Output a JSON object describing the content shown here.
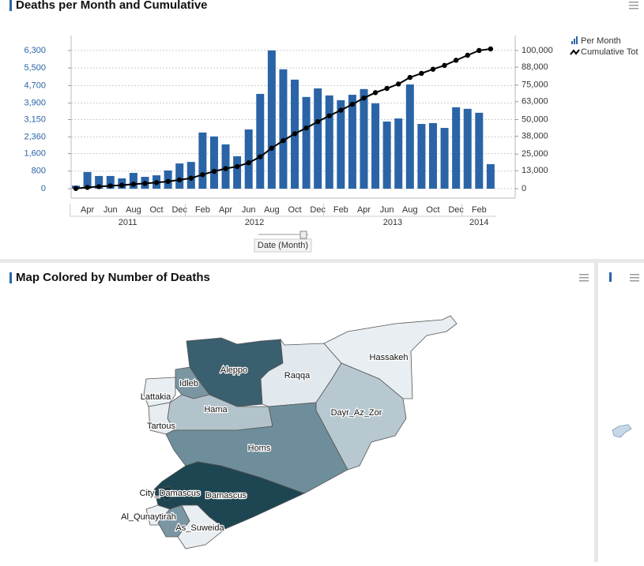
{
  "chart_data": {
    "type": "bar_line",
    "title": "Deaths per Month and Cumulative",
    "x_title": "Date (Month)",
    "categories": [
      null,
      "Apr",
      null,
      "Jun",
      null,
      "Aug",
      null,
      "Oct",
      null,
      "Dec",
      null,
      "Feb",
      null,
      "Apr",
      null,
      "Jun",
      null,
      "Aug",
      null,
      "Oct",
      null,
      "Dec",
      null,
      "Feb",
      null,
      "Apr",
      null,
      "Jun",
      null,
      "Aug",
      null,
      "Oct",
      null,
      "Dec",
      null,
      "Feb",
      null
    ],
    "years": [
      "2011",
      "2012",
      "2013",
      "2014"
    ],
    "series": [
      {
        "name": "Per Month",
        "color": "#2a64a6",
        "kind": "bar",
        "values": [
          140,
          760,
          580,
          580,
          470,
          720,
          540,
          610,
          830,
          1150,
          1220,
          2560,
          2380,
          2020,
          1480,
          2700,
          4320,
          6300,
          5440,
          4970,
          4180,
          4570,
          4250,
          4030,
          4280,
          4540,
          3890,
          3060,
          3200,
          4750,
          2950,
          2990,
          2770,
          3710,
          3640,
          3460,
          1120
        ]
      },
      {
        "name": "Cumulative Tot",
        "color": "#000000",
        "kind": "line",
        "axis": "y2",
        "values": [
          140,
          900,
          1480,
          2060,
          2530,
          3250,
          3790,
          4400,
          5230,
          6380,
          7600,
          10160,
          12540,
          14560,
          16040,
          18740,
          23060,
          29360,
          34800,
          39770,
          43950,
          48520,
          52770,
          56800,
          61080,
          65620,
          69510,
          72570,
          75770,
          80520,
          83470,
          86460,
          89230,
          92940,
          96580,
          100040,
          101160
        ]
      }
    ],
    "ylim": [
      -430,
      6980
    ],
    "yticks": [
      0,
      800,
      {
        "value": 1600,
        "label": "1,600"
      },
      {
        "value": 2360,
        "label": "2,360"
      },
      {
        "value": 3150,
        "label": "3,150"
      },
      {
        "value": 3900,
        "label": "3,900"
      },
      {
        "value": 4700,
        "label": "4,700"
      },
      {
        "value": 5500,
        "label": "5,500"
      },
      {
        "value": 6300,
        "label": "6,300"
      }
    ],
    "y2lim": [
      -6860,
      110860
    ],
    "y2ticks": [
      0,
      {
        "value": 13000,
        "label": "13,000"
      },
      {
        "value": 25000,
        "label": "25,000"
      },
      {
        "value": 38000,
        "label": "38,000"
      },
      {
        "value": 50000,
        "label": "50,000"
      },
      {
        "value": 63000,
        "label": "63,000"
      },
      {
        "value": 75000,
        "label": "75,000"
      },
      {
        "value": 88000,
        "label": "88,000"
      },
      {
        "value": 100000,
        "label": "100,000"
      }
    ],
    "grid": true
  },
  "map": {
    "title": "Map Colored by Number of Deaths",
    "regions": [
      "Aleppo",
      "Raqqa",
      "Hassakeh",
      "Idleb",
      "Lattakia",
      "Hama",
      "Dayr_Az_Zor",
      "Tartous",
      "Homs",
      "City_Damascus",
      "Damascus",
      "Al_Qunaytirah",
      "As_Suweida"
    ]
  }
}
